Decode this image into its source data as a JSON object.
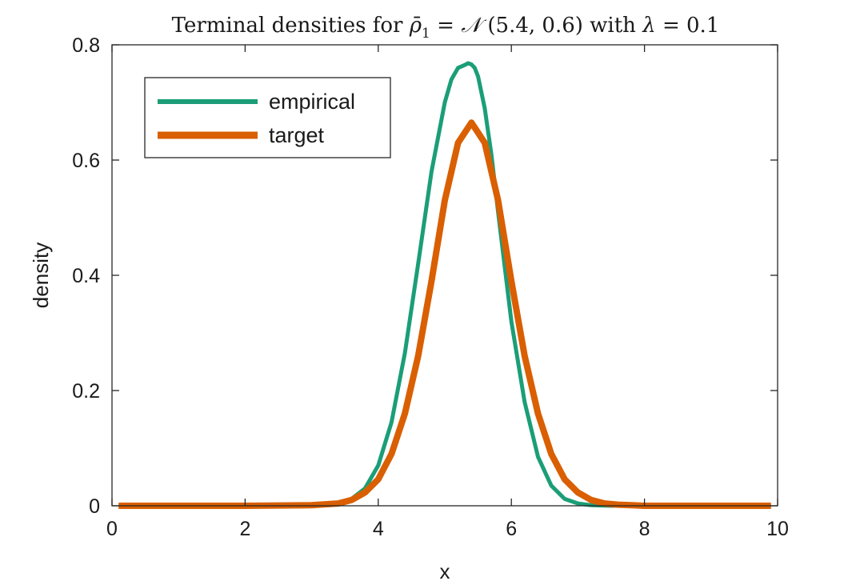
{
  "chart_data": {
    "type": "line",
    "title": {
      "prefix": "Terminal densities for ",
      "rho": "ρ̄",
      "rho_sub": "1",
      "eq1": " = ",
      "dist": "𝒩",
      "params": " (5.4, 0.6) with ",
      "lambda": "λ",
      "eq2": " = 0.1"
    },
    "xlabel": "x",
    "ylabel": "density",
    "xlim": [
      0,
      10
    ],
    "ylim": [
      0,
      0.8
    ],
    "xticks": [
      0,
      2,
      4,
      6,
      8,
      10
    ],
    "xtick_labels": [
      "0",
      "2",
      "4",
      "6",
      "8",
      "10"
    ],
    "yticks": [
      0,
      0.2,
      0.4,
      0.6,
      0.8
    ],
    "ytick_labels": [
      "0",
      "0.2",
      "0.4",
      "0.6",
      "0.8"
    ],
    "grid": false,
    "legend_position": "top-left",
    "series": [
      {
        "name": "empirical",
        "color": "#1b9e77",
        "x": [
          0.1,
          2.0,
          3.0,
          3.4,
          3.6,
          3.8,
          4.0,
          4.2,
          4.4,
          4.6,
          4.8,
          5.0,
          5.1,
          5.2,
          5.3,
          5.35,
          5.4,
          5.45,
          5.5,
          5.6,
          5.7,
          5.8,
          6.0,
          6.2,
          6.4,
          6.6,
          6.8,
          7.0,
          7.2,
          7.5,
          8.0,
          9.9
        ],
        "y": [
          0,
          0,
          0.001,
          0.004,
          0.012,
          0.03,
          0.07,
          0.145,
          0.265,
          0.42,
          0.58,
          0.7,
          0.74,
          0.76,
          0.765,
          0.768,
          0.766,
          0.76,
          0.745,
          0.69,
          0.61,
          0.51,
          0.32,
          0.18,
          0.085,
          0.035,
          0.012,
          0.004,
          0.001,
          0,
          0,
          0
        ]
      },
      {
        "name": "target",
        "color": "#d95f02",
        "x": [
          0.1,
          2.0,
          3.0,
          3.4,
          3.6,
          3.8,
          4.0,
          4.2,
          4.4,
          4.6,
          4.8,
          5.0,
          5.2,
          5.4,
          5.6,
          5.8,
          6.0,
          6.2,
          6.4,
          6.6,
          6.8,
          7.0,
          7.2,
          7.4,
          7.6,
          7.8,
          8.0,
          9.9
        ],
        "y": [
          0,
          0,
          0.001,
          0.004,
          0.01,
          0.023,
          0.046,
          0.09,
          0.16,
          0.26,
          0.39,
          0.53,
          0.63,
          0.665,
          0.63,
          0.53,
          0.39,
          0.26,
          0.16,
          0.09,
          0.046,
          0.023,
          0.01,
          0.004,
          0.002,
          0.001,
          0,
          0
        ]
      }
    ]
  }
}
